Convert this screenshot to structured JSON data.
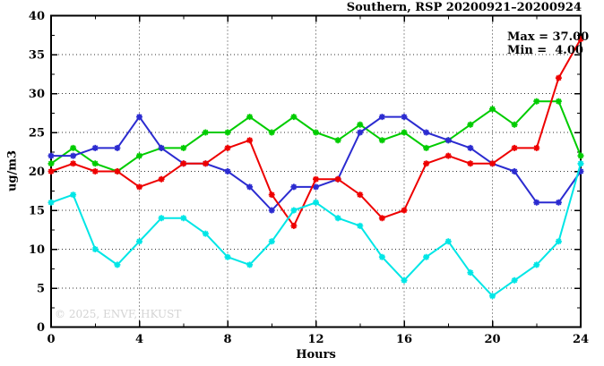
{
  "title": "Southern, RSP 20200921–20200924",
  "legend": {
    "max": "Max = 37.00",
    "min": "Min =  4.00"
  },
  "watermark": "© 2025, ENVF, HKUST",
  "chart_data": {
    "type": "line",
    "title": "Southern, RSP 20200921–20200924",
    "xlabel": "Hours",
    "ylabel": "ug/m3",
    "xlim": [
      0,
      24
    ],
    "ylim": [
      0,
      40
    ],
    "xticks": [
      0,
      4,
      8,
      12,
      16,
      20,
      24
    ],
    "yticks": [
      0,
      5,
      10,
      15,
      20,
      25,
      30,
      35,
      40
    ],
    "x_minor_step": 2,
    "y_minor_step": 2.5,
    "grid": true,
    "legend_position": "top-right-inside",
    "x": [
      0,
      1,
      2,
      3,
      4,
      5,
      6,
      7,
      8,
      9,
      10,
      11,
      12,
      13,
      14,
      15,
      16,
      17,
      18,
      19,
      20,
      21,
      22,
      23,
      24
    ],
    "series": [
      {
        "name": "green",
        "color": "#00cc00",
        "values": [
          21,
          23,
          21,
          20,
          22,
          23,
          23,
          25,
          25,
          27,
          25,
          27,
          25,
          24,
          26,
          24,
          25,
          23,
          24,
          26,
          28,
          26,
          29,
          29,
          22
        ]
      },
      {
        "name": "blue",
        "color": "#2b2bd0",
        "values": [
          22,
          22,
          23,
          23,
          27,
          23,
          21,
          21,
          20,
          18,
          15,
          18,
          18,
          19,
          25,
          27,
          27,
          25,
          24,
          23,
          21,
          20,
          16,
          16,
          20
        ]
      },
      {
        "name": "red",
        "color": "#ee0000",
        "values": [
          20,
          21,
          20,
          20,
          18,
          19,
          21,
          21,
          23,
          24,
          17,
          13,
          19,
          19,
          17,
          14,
          15,
          21,
          22,
          21,
          21,
          23,
          23,
          32,
          37
        ]
      },
      {
        "name": "cyan",
        "color": "#00e6e6",
        "values": [
          16,
          17,
          10,
          8,
          11,
          14,
          14,
          12,
          9,
          8,
          11,
          15,
          16,
          14,
          13,
          9,
          6,
          9,
          11,
          7,
          4,
          6,
          8,
          11,
          21
        ]
      }
    ],
    "annotations": {
      "max": 37.0,
      "min": 4.0
    }
  }
}
